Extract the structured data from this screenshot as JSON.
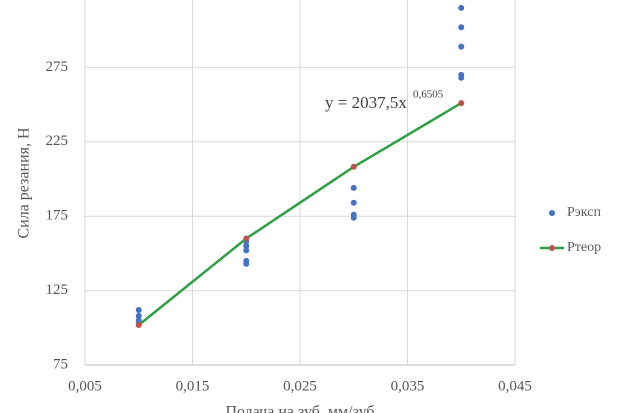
{
  "chart_data": {
    "type": "scatter",
    "xlabel": "Подача на зуб, мм/зуб",
    "ylabel": "Сила резания, Н",
    "annotation": {
      "text": "y = 2037,5x",
      "exponent": "0,6505"
    },
    "xlim": [
      0.005,
      0.045
    ],
    "xticks": [
      {
        "value": 0.005,
        "label": "0,005"
      },
      {
        "value": 0.015,
        "label": "0,015"
      },
      {
        "value": 0.025,
        "label": "0,025"
      },
      {
        "value": 0.035,
        "label": "0,035"
      },
      {
        "value": 0.045,
        "label": "0,045"
      }
    ],
    "ylim": [
      75,
      325
    ],
    "yticks": [
      75,
      125,
      175,
      225,
      275
    ],
    "grid": true,
    "legend": "right",
    "series": [
      {
        "name": "Pэксп",
        "color": "#4472c4",
        "x": [
          0.01,
          0.01,
          0.01,
          0.01,
          0.02,
          0.02,
          0.02,
          0.02,
          0.02,
          0.03,
          0.03,
          0.03,
          0.03,
          0.04,
          0.04,
          0.04,
          0.04,
          0.04
        ],
        "values": [
          112,
          108,
          105,
          103,
          158,
          155,
          152,
          145,
          143,
          194,
          184,
          176,
          174,
          315,
          302,
          289,
          270,
          268
        ]
      },
      {
        "name": "Pтеор",
        "color": "#2ea043",
        "marker_color": "#c0504d",
        "line": true,
        "x": [
          0.01,
          0.02,
          0.03,
          0.04
        ],
        "values": [
          101.9,
          160.0,
          208.2,
          251.0
        ]
      }
    ]
  }
}
